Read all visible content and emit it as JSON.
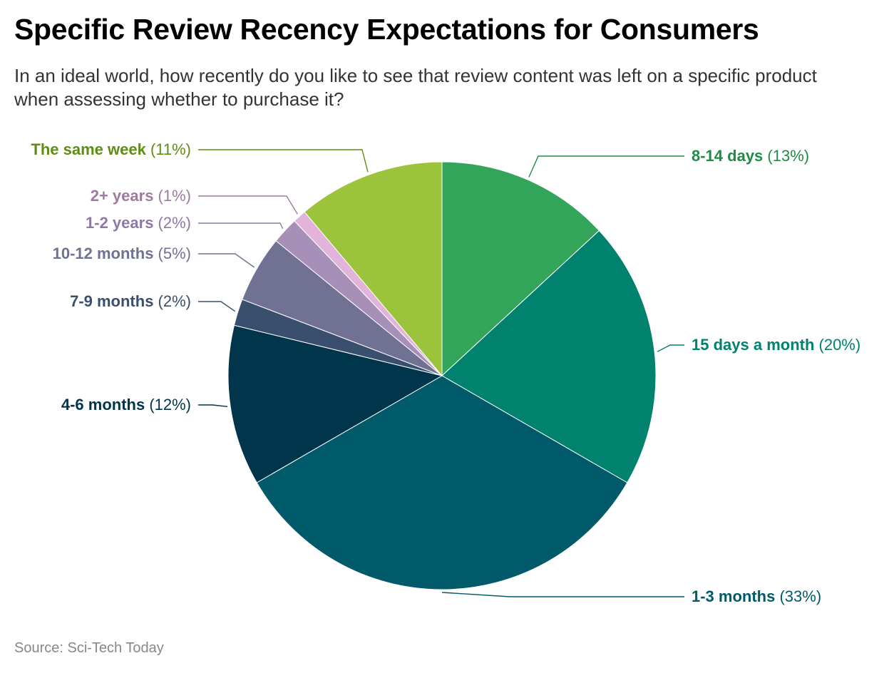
{
  "chart_data": {
    "type": "pie",
    "title": "Specific Review Recency Expectations for Consumers",
    "subtitle": "In an ideal world, how recently do you like to see that review content was left on a specific product when assessing whether to purchase it?",
    "source": "Source: Sci-Tech Today",
    "slices": [
      {
        "label": "8-14 days",
        "pct_label": "(13%)",
        "value": 13,
        "color": "#32a55a",
        "text_color": "#1e8c46"
      },
      {
        "label": "15 days a month",
        "pct_label": "(20%)",
        "value": 20,
        "color": "#00826e",
        "text_color": "#00826e"
      },
      {
        "label": "1-3 months",
        "pct_label": "(33%)",
        "value": 33,
        "color": "#005a69",
        "text_color": "#005a69"
      },
      {
        "label": "4-6 months",
        "pct_label": "(12%)",
        "value": 12,
        "color": "#00354b",
        "text_color": "#00354b"
      },
      {
        "label": "7-9 months",
        "pct_label": "(2%)",
        "value": 2,
        "color": "#3a4f6e",
        "text_color": "#3a4f6e"
      },
      {
        "label": "10-12 months",
        "pct_label": "(5%)",
        "value": 5,
        "color": "#717194",
        "text_color": "#717194"
      },
      {
        "label": "1-2 years",
        "pct_label": "(2%)",
        "value": 2,
        "color": "#a690b7",
        "text_color": "#8c7aa6"
      },
      {
        "label": "2+ years",
        "pct_label": "(1%)",
        "value": 1,
        "color": "#e2b3db",
        "text_color": "#9e7aa0"
      },
      {
        "label": "The same week",
        "pct_label": "(11%)",
        "value": 11,
        "color": "#9bc33c",
        "text_color": "#5f8c14"
      }
    ]
  }
}
